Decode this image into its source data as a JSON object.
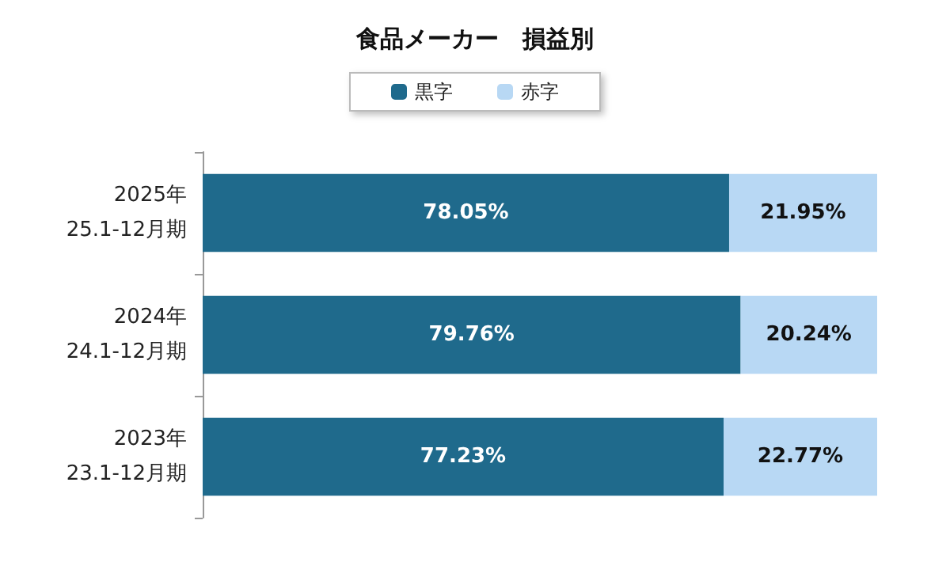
{
  "chart_data": {
    "type": "bar",
    "title": "食品メーカー　損益別",
    "orientation": "horizontal",
    "stacked": true,
    "categories": [
      "2025年\n25.1-12月期",
      "2024年\n24.1-12月期",
      "2023年\n23.1-12月期"
    ],
    "series": [
      {
        "name": "黒字",
        "color": "#1f6a8c",
        "values": [
          78.05,
          79.76,
          77.23
        ],
        "value_labels": [
          "78.05%",
          "79.76%",
          "77.23%"
        ]
      },
      {
        "name": "赤字",
        "color": "#b8d8f4",
        "values": [
          21.95,
          20.24,
          22.77
        ],
        "value_labels": [
          "21.95%",
          "20.24%",
          "22.77%"
        ]
      }
    ],
    "xlim": [
      0,
      100
    ],
    "tick_labels": "y",
    "legend": "top",
    "grid": false
  }
}
